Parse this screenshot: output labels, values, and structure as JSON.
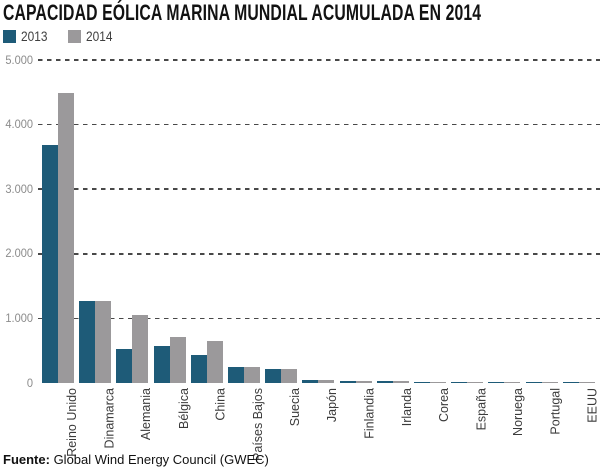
{
  "footer": {
    "source_label": "Fuente:",
    "source_text": " Global Wind Energy Council (GWEC)"
  },
  "chart_data": {
    "type": "bar",
    "title": "CAPACIDAD EÓLICA MARINA MUNDIAL ACUMULADA EN 2014",
    "categories": [
      "Reino Unido",
      "Dinamarca",
      "Alemania",
      "Bélgica",
      "China",
      "Países Bajos",
      "Suecia",
      "Japón",
      "Finlandia",
      "Irlanda",
      "Corea",
      "España",
      "Noruega",
      "Portugal",
      "EEUU"
    ],
    "series": [
      {
        "name": "2013",
        "color": "#1e5b78",
        "values": [
          3681,
          1271,
          520,
          571,
          429,
          247,
          212,
          50,
          26,
          25,
          5,
          5,
          2,
          2,
          0.02
        ]
      },
      {
        "name": "2014",
        "color": "#9b999b",
        "values": [
          4494,
          1271,
          1049,
          712,
          658,
          247,
          212,
          50,
          26,
          25,
          5,
          5,
          2,
          2,
          0.02
        ]
      }
    ],
    "xlabel": "",
    "ylabel": "",
    "ylim": [
      0,
      5000
    ],
    "yticks": [
      {
        "label": "5.000",
        "value": 5000
      },
      {
        "label": "4.000",
        "value": 4000
      },
      {
        "label": "3.000",
        "value": 3000
      },
      {
        "label": "2.000",
        "value": 2000
      },
      {
        "label": "1.000",
        "value": 1000
      },
      {
        "label": "0",
        "value": 0
      }
    ],
    "grid": "horizontal-dashed",
    "legend_position": "top-left",
    "source": "Fuente: Global Wind Energy Council (GWEC)"
  }
}
